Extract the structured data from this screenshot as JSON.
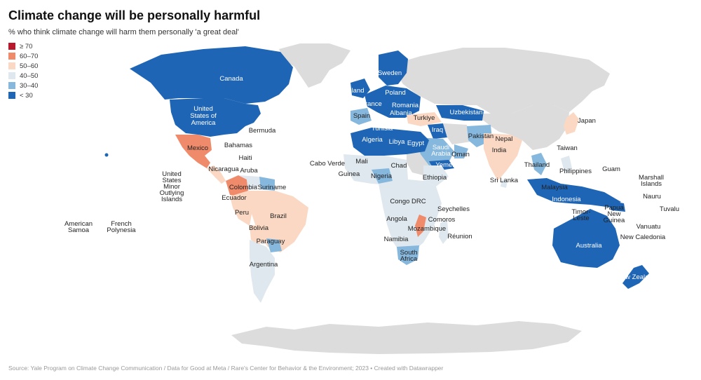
{
  "title": "Climate change will be personally harmful",
  "subtitle": "% who think climate change will harm them personally 'a great deal'",
  "legend": [
    {
      "label": "≥ 70",
      "color": "#b7182b"
    },
    {
      "label": "60–70",
      "color": "#ef8a6b"
    },
    {
      "label": "50–60",
      "color": "#fbd8c3"
    },
    {
      "label": "40–50",
      "color": "#dfe8ee"
    },
    {
      "label": "30–40",
      "color": "#86b7dd"
    },
    {
      "label": "< 30",
      "color": "#1f65b5"
    }
  ],
  "no_data_color": "#dcdcdc",
  "labels": {
    "canada": "Canada",
    "usa": "United States of America",
    "bermuda": "Bermuda",
    "mexico": "Mexico",
    "bahamas": "Bahamas",
    "haiti": "Haiti",
    "nicaragua": "Nicaragua",
    "aruba": "Aruba",
    "us_minor": "United States Minor Outlying Islands",
    "american_samoa": "American Samoa",
    "french_polynesia": "French Polynesia",
    "colombia": "Colombia",
    "suriname": "Suriname",
    "ecuador": "Ecuador",
    "peru": "Peru",
    "brazil": "Brazil",
    "bolivia": "Bolivia",
    "paraguay": "Paraguay",
    "argentina": "Argentina",
    "cabo_verde": "Cabo Verde",
    "mali": "Mali",
    "guinea": "Guinea",
    "nigeria": "Nigeria",
    "chad": "Chad",
    "ethiopia": "Ethiopia",
    "congo_drc": "Congo DRC",
    "angola": "Angola",
    "seychelles": "Seychelles",
    "comoros": "Comoros",
    "mozambique": "Mozambique",
    "reunion": "Réunion",
    "namibia": "Namibia",
    "south_africa": "South Africa",
    "sweden": "Sweden",
    "ireland": "Ireland",
    "poland": "Poland",
    "france": "France",
    "romania": "Romania",
    "spain": "Spain",
    "albania": "Albania",
    "turkiye": "Turkiye",
    "uzbekistan": "Uzbekistan",
    "tunisia": "Tunisia",
    "iraq": "Iraq",
    "algeria": "Algeria",
    "libya": "Libya",
    "egypt": "Egypt",
    "saudi_arabia": "Saudi Arabia",
    "oman": "Oman",
    "yemen": "Yemen",
    "pakistan": "Pakistan",
    "nepal": "Nepal",
    "india": "India",
    "sri_lanka": "Sri Lanka",
    "japan": "Japan",
    "taiwan": "Taiwan",
    "thailand": "Thailand",
    "philippines": "Philippines",
    "guam": "Guam",
    "malaysia": "Malaysia",
    "indonesia": "Indonesia",
    "timor_leste": "Timor-Leste",
    "papua_new_guinea": "Papua New Guinea",
    "marshall_islands": "Marshall Islands",
    "nauru": "Nauru",
    "tuvalu": "Tuvalu",
    "vanuatu": "Vanuatu",
    "new_caledonia": "New Caledonia",
    "australia": "Australia",
    "new_zealand": "New Zealand"
  },
  "source": "Source: Yale Program on Climate Change Communication / Data for Good at Meta / Rare's Center for Behavior & the Environment; 2023 • Created with Datawrapper"
}
